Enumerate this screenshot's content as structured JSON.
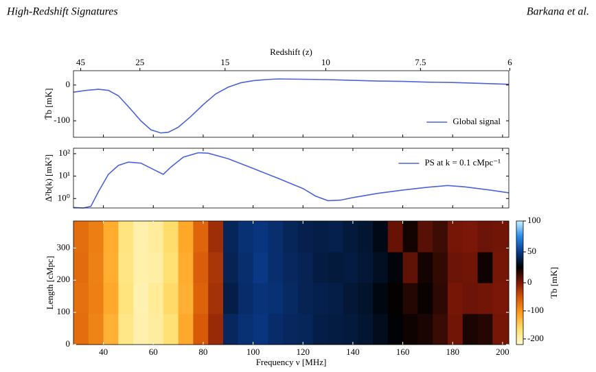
{
  "header": {
    "title": "High-Redshift Signatures",
    "authors": "Barkana et al."
  },
  "chart_data": [
    {
      "type": "line",
      "ylabel": "T̄b [mK]",
      "x2label": "Redshift (z)",
      "x2ticks": [
        45,
        25,
        15,
        10,
        7.5,
        6
      ],
      "x2transform": {
        "rest_frequency_mhz": 1420.4
      },
      "x": [
        28,
        33,
        38,
        42,
        46,
        50,
        55,
        59,
        63,
        66,
        70,
        75,
        80,
        85,
        90,
        95,
        100,
        105,
        110,
        120,
        130,
        140,
        150,
        160,
        170,
        180,
        190,
        202.5
      ],
      "series": [
        {
          "name": "Global signal",
          "color": "#4a63d8",
          "values": [
            -20,
            -15,
            -12,
            -15,
            -30,
            -60,
            -100,
            -125,
            -134,
            -132,
            -118,
            -88,
            -55,
            -25,
            -6,
            6,
            12,
            15,
            17,
            16,
            15,
            13,
            11,
            10,
            8,
            7,
            5,
            2
          ]
        }
      ],
      "xlim": [
        28,
        202.5
      ],
      "xticks": [
        40,
        60,
        80,
        100,
        120,
        140,
        160,
        180,
        200
      ],
      "ylim": [
        -146,
        40
      ],
      "yticks": [
        -100,
        0
      ],
      "legend": "lower right"
    },
    {
      "type": "line",
      "ylabel": "Δ²b(k) [mK²]",
      "log_y": true,
      "x": [
        28,
        32,
        35,
        38,
        42,
        46,
        50,
        55,
        60,
        64,
        67,
        72,
        78,
        82,
        90,
        100,
        110,
        120,
        125,
        130,
        135,
        140,
        150,
        160,
        170,
        178,
        185,
        195,
        202.5
      ],
      "series": [
        {
          "name": "PS at k = 0.1 cMpc⁻¹",
          "color": "#4a63d8",
          "values": [
            0.4,
            0.38,
            0.45,
            2,
            12,
            30,
            42,
            38,
            20,
            12,
            25,
            70,
            110,
            105,
            60,
            22,
            8,
            2.8,
            1.3,
            0.8,
            0.85,
            1.1,
            1.7,
            2.4,
            3.2,
            3.8,
            3.3,
            2.4,
            1.8
          ]
        }
      ],
      "xlim": [
        28,
        202.5
      ],
      "xticks": [
        40,
        60,
        80,
        100,
        120,
        140,
        160,
        180,
        200
      ],
      "ylim": [
        0.38,
        175
      ],
      "yticks": [
        {
          "value": 1,
          "label": "10⁰"
        },
        {
          "value": 10,
          "label": "10¹"
        },
        {
          "value": 100,
          "label": "10²"
        }
      ],
      "legend": "upper right"
    },
    {
      "type": "heatmap",
      "xlabel": "Frequency ν [MHz]",
      "ylabel": "Length [cMpc]",
      "colorbar_label": "Tb [mK]",
      "xbins": [
        28,
        34,
        40,
        46,
        52,
        58,
        64,
        70,
        76,
        82,
        88,
        94,
        100,
        106,
        112,
        118,
        124,
        130,
        136,
        142,
        148,
        154,
        160,
        166,
        172,
        178,
        184,
        190,
        196,
        202.5
      ],
      "ybins": [
        0,
        96,
        192,
        288,
        384
      ],
      "values": [
        [
          -70,
          -88,
          -125,
          -178,
          -200,
          -192,
          -168,
          -118,
          -55,
          -15,
          42,
          46,
          48,
          44,
          42,
          41,
          38,
          37,
          36,
          34,
          30,
          26,
          22,
          20,
          14,
          3,
          20,
          18,
          2
        ],
        [
          -72,
          -84,
          -118,
          -172,
          -202,
          -188,
          -160,
          -124,
          -62,
          -22,
          38,
          44,
          47,
          46,
          43,
          40,
          39,
          38,
          35,
          33,
          28,
          24,
          18,
          23,
          16,
          2,
          4,
          3,
          1
        ],
        [
          -68,
          -86,
          -122,
          -176,
          -198,
          -194,
          -166,
          -120,
          -58,
          -25,
          40,
          45,
          49,
          45,
          42,
          40,
          37,
          36,
          37,
          35,
          31,
          27,
          6,
          21,
          15,
          4,
          3,
          22,
          2
        ],
        [
          -71,
          -83,
          -120,
          -174,
          -200,
          -190,
          -162,
          -116,
          -64,
          -18,
          41,
          46,
          48,
          45,
          41,
          39,
          38,
          39,
          36,
          34,
          29,
          5,
          21,
          8,
          13,
          2,
          1,
          4,
          3
        ]
      ],
      "clim": [
        -220,
        100
      ],
      "norm": "twoslope",
      "vcenter": 0,
      "colormap": [
        "#fffbd0",
        "#ffe070",
        "#ffa020",
        "#d85a08",
        "#801808",
        "#000000",
        "#0a3a8a",
        "#2a8ae8",
        "#c8f4ff"
      ],
      "xlim": [
        28,
        202.5
      ],
      "xticks": [
        40,
        60,
        80,
        100,
        120,
        140,
        160,
        180,
        200
      ],
      "ylim": [
        0,
        384
      ],
      "yticks": [
        0,
        100,
        200,
        300
      ],
      "cticks": [
        -200,
        -100,
        0,
        50,
        100
      ]
    }
  ]
}
